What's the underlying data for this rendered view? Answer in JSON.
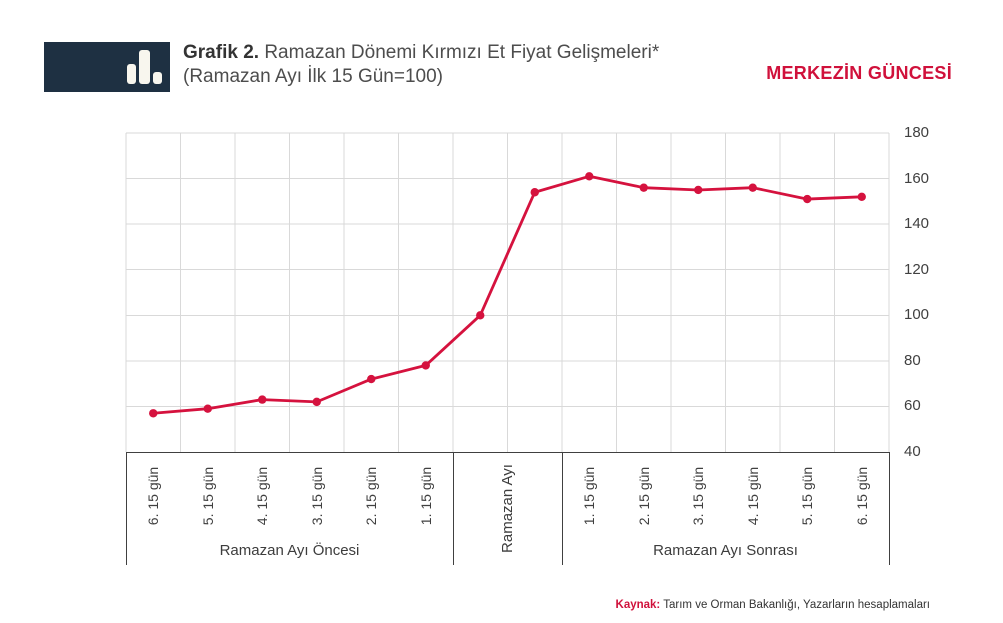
{
  "header": {
    "title_bold": "Grafik 2.",
    "title_rest": " Ramazan Dönemi Kırmızı Et Fiyat Gelişmeleri*",
    "title_line2": "(Ramazan Ayı İlk 15 Gün=100)",
    "brand": "MERKEZİN GÜNCESİ",
    "logo_icon": "bar-chart-icon"
  },
  "footer": {
    "source_label": "Kaynak:",
    "source_text": " Tarım ve Orman Bakanlığı, Yazarların hesaplamaları"
  },
  "colors": {
    "line": "#d5123e",
    "marker": "#d5123e",
    "brand": "#d0113b",
    "logo_bg": "#1e3042",
    "grid": "#d9d9d9",
    "axis_text": "#404040",
    "box_border": "#404040"
  },
  "chart_data": {
    "type": "line",
    "title": "Ramazan Dönemi Kırmızı Et Fiyat Gelişmeleri",
    "index_note": "Ramazan Ayı İlk 15 Gün=100",
    "x_groups": [
      {
        "label": "Ramazan Ayı Öncesi",
        "ticks": [
          "6. 15 gün",
          "5. 15 gün",
          "4. 15 gün",
          "3. 15 gün",
          "2. 15 gün",
          "1. 15 gün"
        ]
      },
      {
        "label": "Ramazan Ayı",
        "merged": true,
        "columns": 2
      },
      {
        "label": "Ramazan Ayı Sonrası",
        "ticks": [
          "1. 15 gün",
          "2. 15 gün",
          "3. 15 gün",
          "4. 15 gün",
          "5. 15 gün",
          "6. 15 gün"
        ]
      }
    ],
    "values": [
      57,
      59,
      63,
      62,
      72,
      78,
      100,
      154,
      161,
      156,
      155,
      156,
      151,
      152
    ],
    "y_ticks": [
      180,
      160,
      140,
      120,
      100,
      80,
      60,
      40
    ],
    "ylim": [
      40,
      180
    ],
    "grid": true,
    "legend": "none",
    "marker": "circle"
  }
}
